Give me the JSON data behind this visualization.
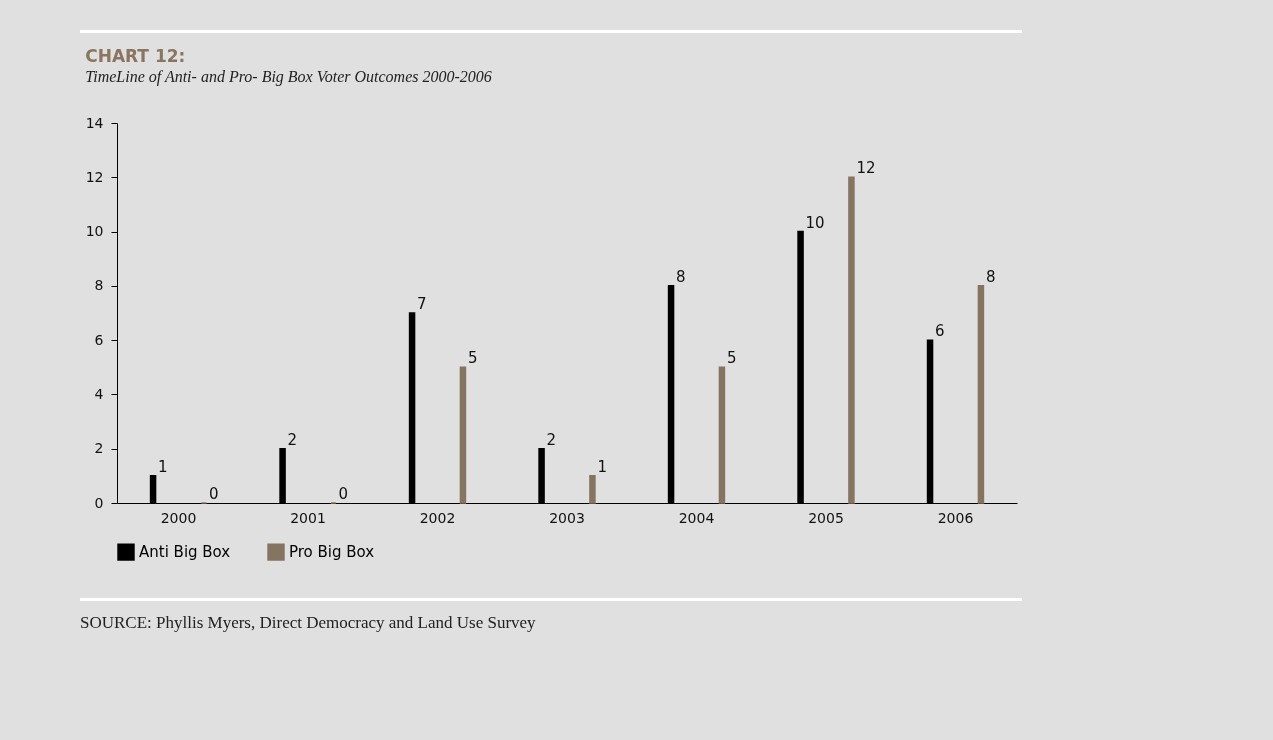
{
  "chart_data": {
    "type": "bar",
    "title": "CHART 12:",
    "subtitle": "TimeLine of Anti- and Pro- Big Box Voter Outcomes 2000-2006",
    "categories": [
      "2000",
      "2001",
      "2002",
      "2003",
      "2004",
      "2005",
      "2006"
    ],
    "series": [
      {
        "name": "Anti Big Box",
        "color": "#000000",
        "values": [
          1,
          2,
          7,
          2,
          8,
          10,
          6
        ]
      },
      {
        "name": "Pro Big Box",
        "color": "#857460",
        "values": [
          0,
          0,
          5,
          1,
          5,
          12,
          8
        ]
      }
    ],
    "ylim": [
      0,
      14
    ],
    "yticks": [
      0,
      2,
      4,
      6,
      8,
      10,
      12,
      14
    ],
    "legend": "bottom",
    "data_labels": true,
    "annotations": [
      "SOURCE: Phyllis Myers, Direct Democracy and Land Use Survey"
    ]
  }
}
